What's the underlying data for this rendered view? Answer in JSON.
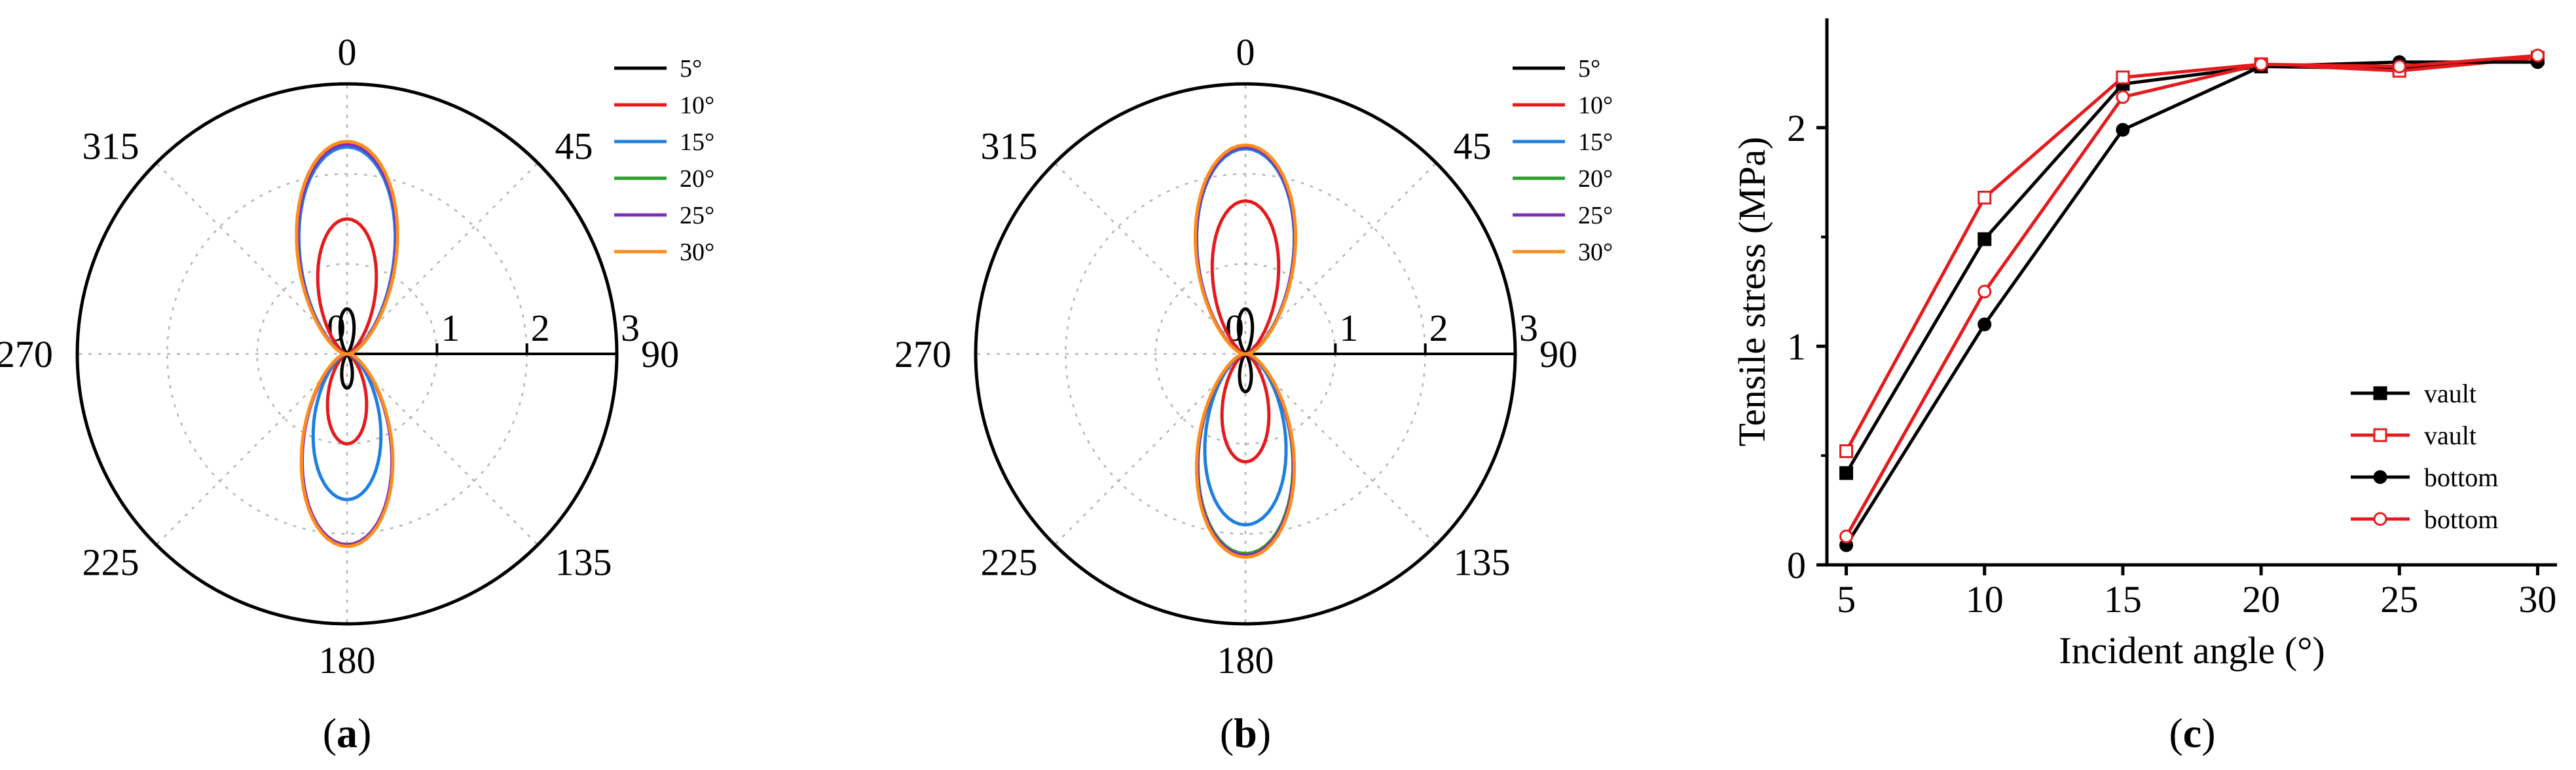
{
  "chart_data": [
    {
      "panel_label": "(a)",
      "bold_letter": "a",
      "type": "polar-line",
      "angle_unit": "degrees, clockwise from top",
      "angle_ticks": [
        0,
        45,
        90,
        135,
        180,
        225,
        270,
        315
      ],
      "radial_ticks": [
        0,
        1,
        2,
        3
      ],
      "radial_range": [
        0,
        3
      ],
      "grid": true,
      "legend_position": "top-right",
      "series": [
        {
          "name": "5°",
          "color": "#000000",
          "amplitude": 0.5,
          "lobe_width": 0.55,
          "outer": 0.38
        },
        {
          "name": "10°",
          "color": "#e41a1c",
          "amplitude": 1.5,
          "lobe_width": 0.78,
          "outer": 1.0
        },
        {
          "name": "15°",
          "color": "#1f7fe0",
          "amplitude": 2.3,
          "lobe_width": 0.84,
          "outer": 1.62
        },
        {
          "name": "20°",
          "color": "#2ca02c",
          "amplitude": 2.36,
          "lobe_width": 0.86,
          "outer": 2.12
        },
        {
          "name": "25°",
          "color": "#7b2fbe",
          "amplitude": 2.33,
          "lobe_width": 0.85,
          "outer": 2.12
        },
        {
          "name": "30°",
          "color": "#ff8c1a",
          "amplitude": 2.36,
          "lobe_width": 0.86,
          "outer": 2.14
        }
      ]
    },
    {
      "panel_label": "(b)",
      "bold_letter": "b",
      "type": "polar-line",
      "angle_unit": "degrees, clockwise from top",
      "angle_ticks": [
        0,
        45,
        90,
        135,
        180,
        225,
        270,
        315
      ],
      "radial_ticks": [
        0,
        1,
        2,
        3
      ],
      "radial_range": [
        0,
        3
      ],
      "grid": true,
      "legend_position": "top-right",
      "series": [
        {
          "name": "5°",
          "color": "#000000",
          "amplitude": 0.5,
          "lobe_width": 0.55,
          "outer": 0.42
        },
        {
          "name": "10°",
          "color": "#e41a1c",
          "amplitude": 1.7,
          "lobe_width": 0.78,
          "outer": 1.2
        },
        {
          "name": "15°",
          "color": "#1f7fe0",
          "amplitude": 2.28,
          "lobe_width": 0.86,
          "outer": 1.9
        },
        {
          "name": "20°",
          "color": "#2ca02c",
          "amplitude": 2.3,
          "lobe_width": 0.86,
          "outer": 2.22
        },
        {
          "name": "25°",
          "color": "#7b2fbe",
          "amplitude": 2.3,
          "lobe_width": 0.86,
          "outer": 2.24
        },
        {
          "name": "30°",
          "color": "#ff8c1a",
          "amplitude": 2.32,
          "lobe_width": 0.87,
          "outer": 2.26
        }
      ]
    },
    {
      "panel_label": "(c)",
      "bold_letter": "c",
      "type": "line",
      "xlabel": "Incident angle (°)",
      "ylabel": "Tensile stress (MPa)",
      "x": [
        5,
        10,
        15,
        20,
        25,
        30
      ],
      "xlim": [
        4.3,
        30.7
      ],
      "ylim": [
        0,
        2.5
      ],
      "yticks": [
        0,
        1,
        2
      ],
      "grid": false,
      "legend_position": "bottom-right",
      "series": [
        {
          "name": "vault",
          "color": "#000000",
          "marker": "square",
          "filled": true,
          "values": [
            0.42,
            1.49,
            2.2,
            2.28,
            2.27,
            2.32
          ]
        },
        {
          "name": "vault",
          "color": "#e41a1c",
          "marker": "square",
          "filled": false,
          "values": [
            0.52,
            1.68,
            2.23,
            2.29,
            2.26,
            2.32
          ]
        },
        {
          "name": "bottom",
          "color": "#000000",
          "marker": "circle",
          "filled": true,
          "values": [
            0.09,
            1.1,
            1.99,
            2.28,
            2.3,
            2.3
          ]
        },
        {
          "name": "bottom",
          "color": "#e41a1c",
          "marker": "circle",
          "filled": false,
          "values": [
            0.13,
            1.25,
            2.14,
            2.29,
            2.28,
            2.33
          ]
        }
      ]
    }
  ]
}
